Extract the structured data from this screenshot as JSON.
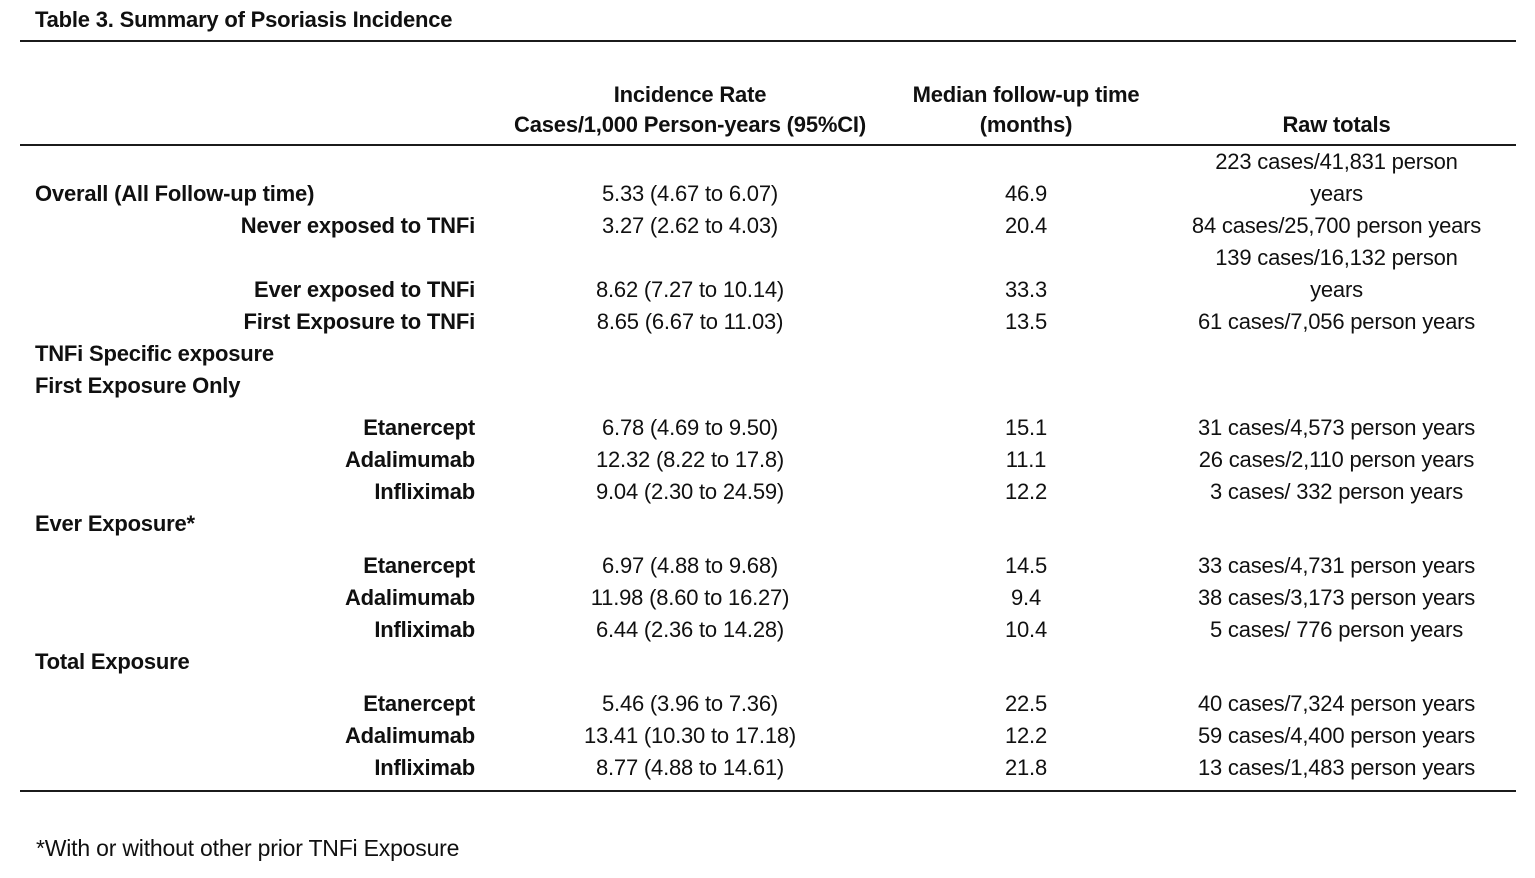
{
  "title": "Table 3. Summary of Psoriasis Incidence",
  "footnote": "*With or without other prior TNFi Exposure",
  "header": {
    "col_label": "",
    "col_incidence": "Incidence Rate\nCases/1,000 Person-years (95%CI)",
    "col_followup": "Median follow-up time\n(months)",
    "col_raw": "Raw totals"
  },
  "rows": [
    {
      "label": "Overall (All Follow-up time)",
      "align": "left",
      "gap_above": false,
      "incidence_rate": "5.33 (4.67 to 6.07)",
      "median_followup": "46.9",
      "raw_totals": "223 cases/41,831 person\nyears"
    },
    {
      "label": "Never exposed to TNFi",
      "align": "right",
      "gap_above": false,
      "incidence_rate": "3.27 (2.62 to 4.03)",
      "median_followup": "20.4",
      "raw_totals": "84 cases/25,700 person years"
    },
    {
      "label": "Ever exposed to TNFi",
      "align": "right",
      "gap_above": false,
      "incidence_rate": "8.62 (7.27 to 10.14)",
      "median_followup": "33.3",
      "raw_totals": "139 cases/16,132 person\nyears"
    },
    {
      "label": "First Exposure to TNFi",
      "align": "right",
      "gap_above": false,
      "incidence_rate": "8.65 (6.67 to 11.03)",
      "median_followup": "13.5",
      "raw_totals": "61 cases/7,056 person years"
    },
    {
      "label": "TNFi Specific exposure",
      "align": "left",
      "gap_above": false,
      "incidence_rate": "",
      "median_followup": "",
      "raw_totals": ""
    },
    {
      "label": "First Exposure Only",
      "align": "left",
      "gap_above": false,
      "incidence_rate": "",
      "median_followup": "",
      "raw_totals": ""
    },
    {
      "label": "Etanercept",
      "align": "right",
      "gap_above": true,
      "incidence_rate": "6.78 (4.69 to 9.50)",
      "median_followup": "15.1",
      "raw_totals": "31 cases/4,573 person years"
    },
    {
      "label": "Adalimumab",
      "align": "right",
      "gap_above": false,
      "incidence_rate": "12.32 (8.22 to 17.8)",
      "median_followup": "11.1",
      "raw_totals": "26 cases/2,110 person years"
    },
    {
      "label": "Infliximab",
      "align": "right",
      "gap_above": false,
      "incidence_rate": "9.04 (2.30 to 24.59)",
      "median_followup": "12.2",
      "raw_totals": "3 cases/ 332 person years"
    },
    {
      "label": "Ever Exposure*",
      "align": "left",
      "gap_above": false,
      "incidence_rate": "",
      "median_followup": "",
      "raw_totals": ""
    },
    {
      "label": "Etanercept",
      "align": "right",
      "gap_above": true,
      "incidence_rate": "6.97 (4.88 to 9.68)",
      "median_followup": "14.5",
      "raw_totals": "33 cases/4,731 person years"
    },
    {
      "label": "Adalimumab",
      "align": "right",
      "gap_above": false,
      "incidence_rate": "11.98 (8.60 to 16.27)",
      "median_followup": "9.4",
      "raw_totals": "38 cases/3,173 person years"
    },
    {
      "label": "Infliximab",
      "align": "right",
      "gap_above": false,
      "incidence_rate": "6.44 (2.36 to 14.28)",
      "median_followup": "10.4",
      "raw_totals": "5 cases/ 776 person years"
    },
    {
      "label": "Total Exposure",
      "align": "left",
      "gap_above": false,
      "incidence_rate": "",
      "median_followup": "",
      "raw_totals": ""
    },
    {
      "label": "Etanercept",
      "align": "right",
      "gap_above": true,
      "incidence_rate": "5.46 (3.96 to 7.36)",
      "median_followup": "22.5",
      "raw_totals": "40 cases/7,324 person years"
    },
    {
      "label": "Adalimumab",
      "align": "right",
      "gap_above": false,
      "incidence_rate": "13.41 (10.30 to 17.18)",
      "median_followup": "12.2",
      "raw_totals": "59 cases/4,400 person years"
    },
    {
      "label": "Infliximab",
      "align": "right",
      "gap_above": false,
      "incidence_rate": "8.77 (4.88 to 14.61)",
      "median_followup": "21.8",
      "raw_totals": "13 cases/1,483 person years"
    }
  ]
}
